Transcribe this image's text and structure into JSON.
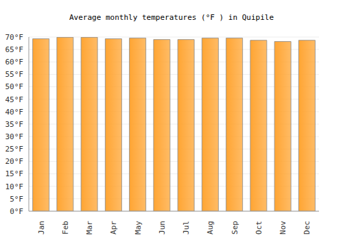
{
  "chart_data": {
    "type": "bar",
    "title": "Average monthly temperatures (°F ) in Quipile",
    "categories": [
      "Jan",
      "Feb",
      "Mar",
      "Apr",
      "May",
      "Jun",
      "Jul",
      "Aug",
      "Sep",
      "Oct",
      "Nov",
      "Dec"
    ],
    "values": [
      69.3,
      69.9,
      69.9,
      69.3,
      69.6,
      69.0,
      69.0,
      69.6,
      69.6,
      68.7,
      68.2,
      68.7
    ],
    "color": "#ffa533",
    "ylim": [
      0,
      70
    ],
    "yticks": [
      {
        "value": 0,
        "label": "0°F"
      },
      {
        "value": 5,
        "label": "5°F"
      },
      {
        "value": 10,
        "label": "10°F"
      },
      {
        "value": 15,
        "label": "15°F"
      },
      {
        "value": 20,
        "label": "20°F"
      },
      {
        "value": 25,
        "label": "25°F"
      },
      {
        "value": 30,
        "label": "30°F"
      },
      {
        "value": 35,
        "label": "35°F"
      },
      {
        "value": 40,
        "label": "40°F"
      },
      {
        "value": 45,
        "label": "45°F"
      },
      {
        "value": 50,
        "label": "50°F"
      },
      {
        "value": 55,
        "label": "55°F"
      },
      {
        "value": 60,
        "label": "60°F"
      },
      {
        "value": 65,
        "label": "65°F"
      },
      {
        "value": 70,
        "label": "70°F"
      }
    ],
    "grid": true
  }
}
